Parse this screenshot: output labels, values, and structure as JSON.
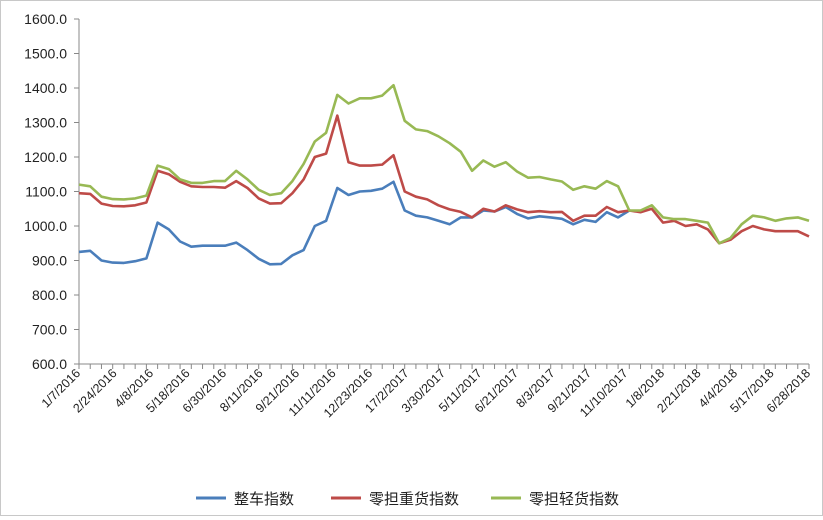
{
  "chart_data": {
    "type": "line",
    "title": "",
    "xlabel": "",
    "ylabel": "",
    "ylim": [
      600,
      1600
    ],
    "y_ticks": [
      "600.0",
      "700.0",
      "800.0",
      "900.0",
      "1000.0",
      "1100.0",
      "1200.0",
      "1300.0",
      "1400.0",
      "1500.0",
      "1600.0"
    ],
    "x_tick_labels": [
      "1/7/2016",
      "2/24/2016",
      "4/8/2016",
      "5/18/2016",
      "6/30/2016",
      "8/11/2016",
      "9/21/2016",
      "11/11/2016",
      "12/23/2016",
      "17/2/2017",
      "3/30/2017",
      "5/11/2017",
      "6/21/2017",
      "8/3/2017",
      "9/21/2017",
      "11/10/2017",
      "1/8/2018",
      "2/21/2018",
      "4/4/2018",
      "5/17/2018",
      "6/28/2018"
    ],
    "grid": false,
    "legend_position": "bottom",
    "series": [
      {
        "name": "整车指数",
        "color": "#4a7ebb",
        "values": [
          925,
          928,
          900,
          894,
          893,
          898,
          906,
          1010,
          990,
          955,
          940,
          943,
          943,
          943,
          952,
          930,
          905,
          889,
          890,
          915,
          930,
          1000,
          1015,
          1110,
          1090,
          1100,
          1102,
          1108,
          1128,
          1045,
          1030,
          1025,
          1015,
          1005,
          1025,
          1025,
          1045,
          1042,
          1055,
          1035,
          1022,
          1028,
          1025,
          1021,
          1005,
          1018,
          1012,
          1040,
          1025,
          1045,
          null,
          null,
          null,
          null,
          null,
          null,
          null,
          null,
          null,
          null,
          null,
          null,
          null,
          null,
          null,
          null
        ]
      },
      {
        "name": "零担重货指数",
        "color": "#be4b48",
        "values": [
          1095,
          1093,
          1065,
          1058,
          1057,
          1060,
          1068,
          1160,
          1150,
          1128,
          1115,
          1113,
          1113,
          1111,
          1130,
          1110,
          1080,
          1065,
          1066,
          1095,
          1135,
          1200,
          1210,
          1320,
          1185,
          1175,
          1175,
          1178,
          1205,
          1100,
          1085,
          1077,
          1060,
          1048,
          1041,
          1025,
          1050,
          1042,
          1060,
          1048,
          1040,
          1043,
          1040,
          1041,
          1015,
          1030,
          1030,
          1055,
          1040,
          1045,
          1040,
          1050,
          1010,
          1015,
          1000,
          1005,
          990,
          950,
          960,
          985,
          1000,
          990,
          985,
          985,
          985,
          970
        ]
      },
      {
        "name": "零担轻货指数",
        "color": "#98b954",
        "values": [
          1120,
          1115,
          1085,
          1078,
          1077,
          1080,
          1088,
          1175,
          1165,
          1135,
          1125,
          1125,
          1130,
          1130,
          1160,
          1135,
          1105,
          1090,
          1095,
          1130,
          1180,
          1245,
          1270,
          1380,
          1355,
          1370,
          1370,
          1378,
          1408,
          1305,
          1280,
          1275,
          1260,
          1240,
          1215,
          1160,
          1190,
          1172,
          1185,
          1158,
          1140,
          1142,
          1135,
          1129,
          1105,
          1115,
          1108,
          1130,
          1115,
          1045,
          1045,
          1060,
          1025,
          1020,
          1020,
          1015,
          1010,
          950,
          965,
          1005,
          1030,
          1025,
          1015,
          1022,
          1025,
          1015
        ]
      }
    ]
  }
}
